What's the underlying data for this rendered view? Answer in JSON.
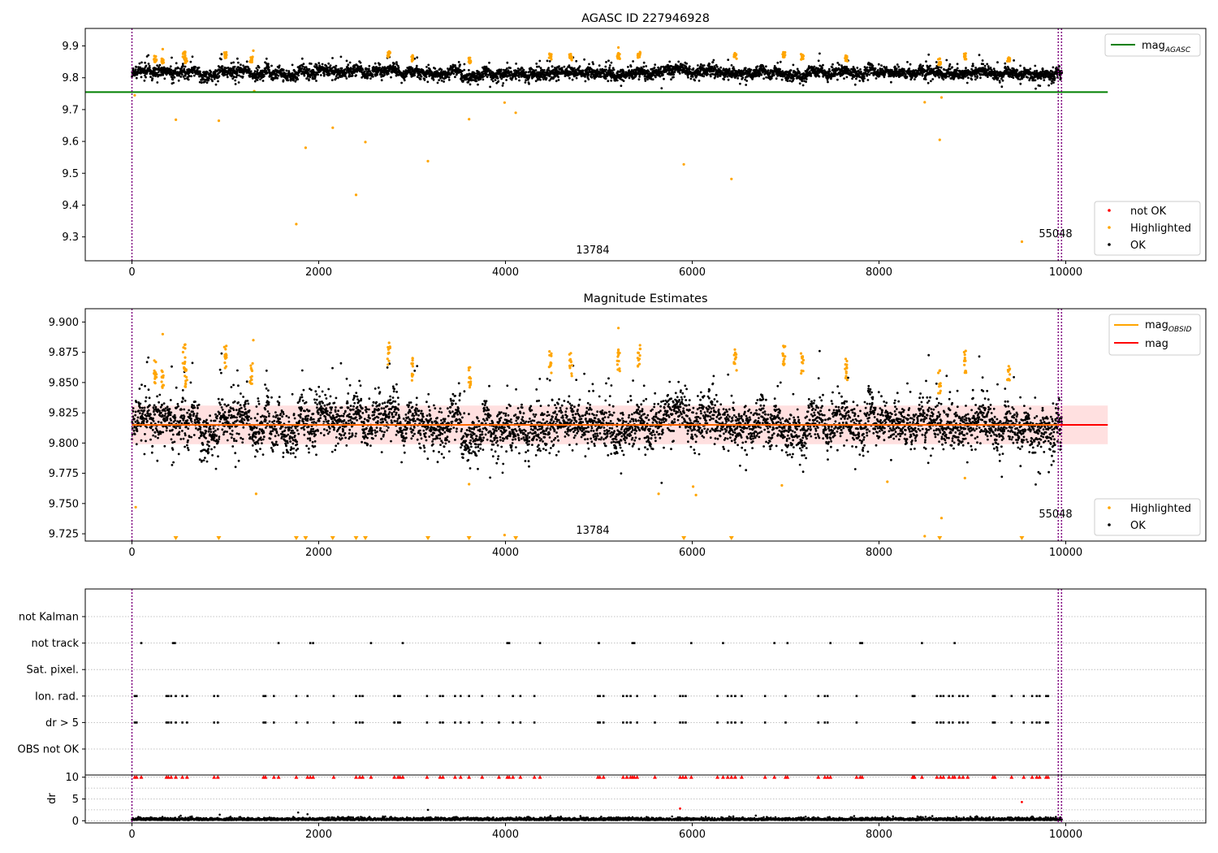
{
  "chart_data": [
    {
      "id": "top",
      "type": "scatter",
      "title": "AGASC ID 227946928",
      "xlim": [
        -500,
        11500
      ],
      "ylim": [
        9.225,
        9.955
      ],
      "yticks": [
        "9.3",
        "9.4",
        "9.5",
        "9.6",
        "9.7",
        "9.8",
        "9.9"
      ],
      "xticks": [
        "0",
        "2000",
        "4000",
        "6000",
        "8000",
        "10000"
      ],
      "hline": {
        "y": 9.755,
        "x_end": 10450,
        "color": "#008000"
      },
      "legend_upper": [
        {
          "label": "mag",
          "subscript": "AGASC",
          "color": "#008000",
          "kind": "line"
        }
      ],
      "legend_lower": [
        {
          "label": "not OK",
          "color": "#ff0000",
          "kind": "dot"
        },
        {
          "label": "Highlighted",
          "color": "#ffa500",
          "kind": "dot"
        },
        {
          "label": "OK",
          "color": "#000000",
          "kind": "dot"
        }
      ],
      "obsid_labels": [
        {
          "text": "13784",
          "x": 4950,
          "y": 9.245
        },
        {
          "text": "55048",
          "x": 9950,
          "y": 9.297
        }
      ],
      "vlines": [
        0,
        9920,
        9955
      ],
      "highlighted_outliers": [
        [
          30,
          9.745
        ],
        [
          470,
          9.668
        ],
        [
          930,
          9.665
        ],
        [
          1310,
          9.758
        ],
        [
          1760,
          9.34
        ],
        [
          1860,
          9.58
        ],
        [
          2150,
          9.643
        ],
        [
          2400,
          9.432
        ],
        [
          2500,
          9.598
        ],
        [
          3170,
          9.538
        ],
        [
          3610,
          9.67
        ],
        [
          3990,
          9.722
        ],
        [
          4110,
          9.69
        ],
        [
          5910,
          9.528
        ],
        [
          6420,
          9.482
        ],
        [
          8490,
          9.723
        ],
        [
          8650,
          9.605
        ],
        [
          8670,
          9.738
        ],
        [
          9530,
          9.285
        ]
      ]
    },
    {
      "id": "middle",
      "type": "scatter",
      "title": "Magnitude Estimates",
      "xlim": [
        -500,
        11500
      ],
      "ylim": [
        9.719,
        9.911
      ],
      "yticks": [
        "9.725",
        "9.750",
        "9.775",
        "9.800",
        "9.825",
        "9.850",
        "9.875",
        "9.900"
      ],
      "xticks": [
        "0",
        "2000",
        "4000",
        "6000",
        "8000",
        "10000"
      ],
      "mean_line": {
        "y": 9.815,
        "x_end": 10450,
        "color": "#ff0000"
      },
      "band": {
        "low": 9.799,
        "high": 9.831
      },
      "legend_upper": [
        {
          "label": "mag",
          "subscript": "OBSID",
          "color": "#ffa500",
          "kind": "line"
        },
        {
          "label": "mag",
          "subscript": "",
          "color": "#ff0000",
          "kind": "line"
        }
      ],
      "legend_lower": [
        {
          "label": "Highlighted",
          "color": "#ffa500",
          "kind": "dot"
        },
        {
          "label": "OK",
          "color": "#000000",
          "kind": "dot"
        }
      ],
      "obsid_labels": [
        {
          "text": "13784",
          "x": 4950,
          "y": 9.727
        },
        {
          "text": "55048",
          "x": 9950,
          "y": 9.741
        }
      ],
      "vlines": [
        0,
        9920,
        9955
      ],
      "clipped_markers_x": [
        470,
        930,
        1760,
        1860,
        2150,
        2400,
        2500,
        3170,
        3610,
        4110,
        5910,
        6420,
        8650,
        9530
      ],
      "highlighted_outliers": [
        [
          40,
          9.747
        ],
        [
          1330,
          9.758
        ],
        [
          3610,
          9.766
        ],
        [
          3990,
          9.724
        ],
        [
          5640,
          9.758
        ],
        [
          6010,
          9.764
        ],
        [
          6040,
          9.757
        ],
        [
          6960,
          9.765
        ],
        [
          8090,
          9.768
        ],
        [
          8490,
          9.723
        ],
        [
          8670,
          9.738
        ],
        [
          8920,
          9.771
        ]
      ]
    },
    {
      "id": "flags",
      "type": "scatter",
      "xlim": [
        -500,
        11500
      ],
      "categories": [
        "not Kalman",
        "not track",
        "Sat. pixel.",
        "Ion. rad.",
        "dr > 5",
        "OBS not OK"
      ],
      "not_track_x": [
        100,
        440,
        460,
        1570,
        1910,
        1940,
        2560,
        2900,
        4020,
        4040,
        4370,
        5000,
        5360,
        5380,
        5990,
        6330,
        6880,
        7020,
        7480,
        7800,
        7820,
        8460,
        8810
      ],
      "ion_rad_x": [
        30,
        50,
        370,
        390,
        420,
        470,
        540,
        590,
        880,
        920,
        1410,
        1430,
        1520,
        1760,
        1880,
        2160,
        2400,
        2440,
        2470,
        2810,
        2850,
        2870,
        3160,
        3300,
        3330,
        3460,
        3520,
        3610,
        3750,
        3930,
        4080,
        4160,
        4310,
        4990,
        5010,
        5050,
        5260,
        5300,
        5340,
        5410,
        5600,
        5870,
        5900,
        5930,
        6270,
        6380,
        6420,
        6460,
        6530,
        6780,
        7000,
        7350,
        7420,
        7450,
        7760,
        8360,
        8370,
        8380,
        8620,
        8660,
        8690,
        8750,
        8790,
        8860,
        8900,
        8950,
        9220,
        9240,
        9420,
        9550,
        9640,
        9690,
        9720,
        9790,
        9810
      ],
      "dr5_x": [
        30,
        50,
        370,
        390,
        420,
        470,
        540,
        590,
        880,
        920,
        1410,
        1430,
        1520,
        1760,
        1880,
        2160,
        2400,
        2440,
        2470,
        2810,
        2850,
        2870,
        3160,
        3300,
        3330,
        3460,
        3520,
        3610,
        3750,
        3930,
        4080,
        4160,
        4310,
        4990,
        5010,
        5050,
        5260,
        5300,
        5340,
        5410,
        5600,
        5870,
        5900,
        5930,
        6270,
        6380,
        6420,
        6460,
        6530,
        6780,
        7000,
        7350,
        7420,
        7450,
        7760,
        8360,
        8370,
        8380,
        8620,
        8660,
        8690,
        8750,
        8790,
        8860,
        8900,
        8950,
        9220,
        9240,
        9420,
        9550,
        9640,
        9690,
        9720,
        9790,
        9810
      ],
      "vlines": [
        0,
        9920,
        9955
      ]
    },
    {
      "id": "dr",
      "type": "scatter",
      "ylabel": "dr",
      "xlim": [
        -500,
        11500
      ],
      "ylim": [
        -0.5,
        10.5
      ],
      "yticks": [
        "0",
        "5",
        "10"
      ],
      "xticks": [
        "0",
        "2000",
        "4000",
        "6000",
        "8000",
        "10000"
      ],
      "clipped_markers_x": [
        30,
        50,
        100,
        370,
        390,
        420,
        470,
        540,
        590,
        880,
        920,
        1410,
        1430,
        1520,
        1570,
        1760,
        1880,
        1910,
        1940,
        2160,
        2400,
        2440,
        2470,
        2560,
        2810,
        2850,
        2870,
        2900,
        3160,
        3300,
        3330,
        3460,
        3520,
        3610,
        3750,
        3930,
        4020,
        4040,
        4080,
        4160,
        4310,
        4370,
        4990,
        5010,
        5050,
        5260,
        5300,
        5340,
        5360,
        5380,
        5410,
        5600,
        5870,
        5900,
        5930,
        5990,
        6270,
        6330,
        6380,
        6420,
        6460,
        6530,
        6780,
        6880,
        7000,
        7020,
        7350,
        7420,
        7450,
        7480,
        7760,
        7800,
        7820,
        8360,
        8370,
        8380,
        8460,
        8620,
        8660,
        8690,
        8750,
        8790,
        8810,
        8860,
        8900,
        8950,
        9220,
        9240,
        9420,
        9550,
        9640,
        9690,
        9720,
        9790,
        9810
      ],
      "red_outliers": [
        [
          5870,
          2.8
        ],
        [
          9530,
          4.3
        ]
      ],
      "black_outliers": [
        [
          940,
          1.4
        ],
        [
          1780,
          1.9
        ],
        [
          1880,
          1.5
        ],
        [
          3170,
          2.5
        ],
        [
          6440,
          1.0
        ],
        [
          8150,
          1.0
        ]
      ],
      "vlines": [
        0,
        9920,
        9955
      ]
    }
  ]
}
